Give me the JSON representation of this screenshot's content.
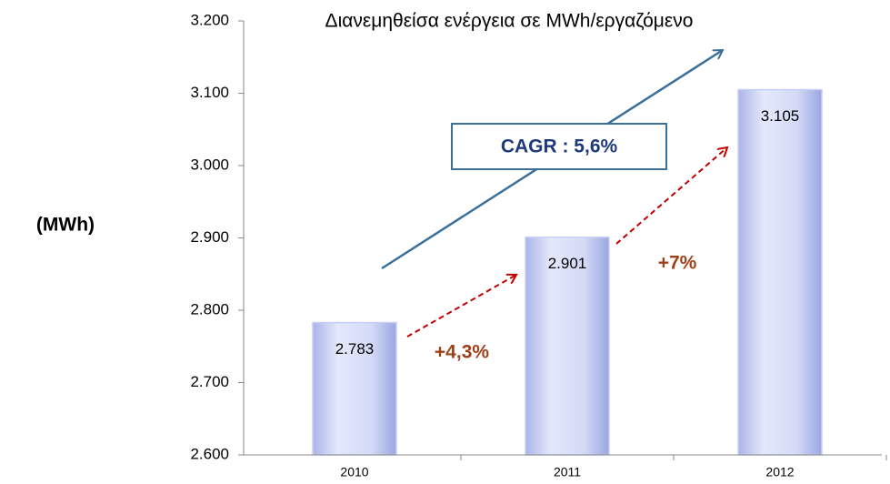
{
  "chart_data": {
    "type": "bar",
    "title": "Διανεμηθείσα ενέργεια σε MWh/εργαζόμενο",
    "y_label": "(MWh)",
    "categories": [
      "2010",
      "2011",
      "2012"
    ],
    "values": [
      2783,
      2901,
      3105
    ],
    "value_labels": [
      "2.783",
      "2.901",
      "3.105"
    ],
    "color": "#c8d0f5",
    "ylim": [
      2600,
      3200
    ],
    "yticks": [
      {
        "value": 2600,
        "label": "2.600"
      },
      {
        "value": 2700,
        "label": "2.700"
      },
      {
        "value": 2800,
        "label": "2.800"
      },
      {
        "value": 2900,
        "label": "2.900"
      },
      {
        "value": 3000,
        "label": "3.000"
      },
      {
        "value": 3100,
        "label": "3.100"
      },
      {
        "value": 3200,
        "label": "3.200"
      }
    ],
    "annotations": [
      "CAGR : 5,6%",
      "+4,3%",
      "+7%"
    ]
  }
}
